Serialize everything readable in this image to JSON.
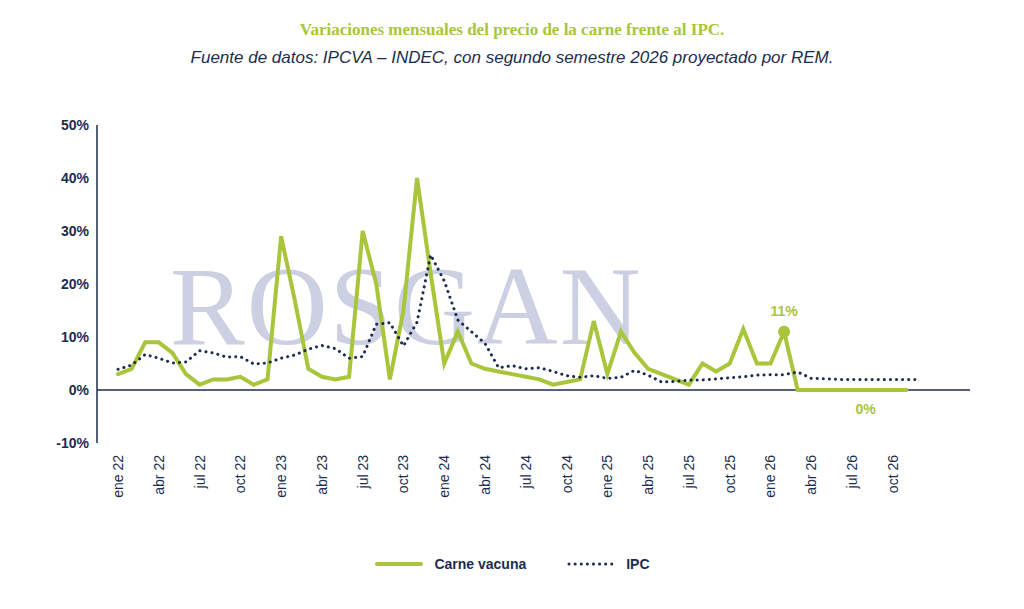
{
  "chart_data": {
    "type": "line",
    "title": "Variaciones mensuales del precio de la carne frente al IPC.",
    "subtitle": "Fuente de datos: IPCVA – INDEC, con segundo semestre 2026 proyectado por REM.",
    "watermark": "ROSGAN",
    "categories": [
      "ene 22",
      null,
      null,
      "abr 22",
      null,
      null,
      "jul 22",
      null,
      null,
      "oct 22",
      null,
      null,
      "ene 23",
      null,
      null,
      "abr 23",
      null,
      null,
      "jul 23",
      null,
      null,
      "oct 23",
      null,
      null,
      "ene 24",
      null,
      null,
      "abr 24",
      null,
      null,
      "jul 24",
      null,
      null,
      "oct 24",
      null,
      null,
      "ene 25",
      null,
      null,
      "abr 25",
      null,
      null,
      "jul 25",
      null,
      null,
      "oct 25",
      null,
      null,
      "ene 26",
      null,
      null,
      "abr 26",
      null,
      null,
      "jul 26",
      null,
      null,
      "oct 26",
      null,
      null
    ],
    "series": [
      {
        "name": "Carne vacuna",
        "color": "#a9c53b",
        "line_style": "solid",
        "values": [
          3,
          4,
          9,
          9,
          7,
          3,
          1,
          2,
          2,
          2.5,
          1,
          2,
          29,
          17,
          4,
          2.5,
          2,
          2.5,
          30,
          20,
          2,
          15,
          40,
          22,
          5,
          11,
          5,
          4,
          3.5,
          3,
          2.5,
          2,
          1,
          1.5,
          2,
          13,
          3,
          11,
          7,
          4,
          3,
          2,
          1,
          5,
          3.5,
          5,
          11.5,
          5,
          5,
          11,
          0,
          0,
          0,
          0,
          0,
          0,
          0,
          0,
          0,
          null
        ]
      },
      {
        "name": "IPC",
        "color": "#1c2d4f",
        "line_style": "dotted",
        "values": [
          3.9,
          4.7,
          6.7,
          6,
          5.1,
          5.3,
          7.4,
          7,
          6.2,
          6.3,
          4.9,
          5.1,
          6,
          6.6,
          7.7,
          8.4,
          7.8,
          6,
          6.3,
          12.4,
          12.7,
          8.3,
          12.8,
          25.5,
          20.6,
          13.2,
          11,
          8.8,
          4.2,
          4.6,
          4,
          4.2,
          3.5,
          2.7,
          2.4,
          2.7,
          2.2,
          2.4,
          3.7,
          2.8,
          1.5,
          1.6,
          1.9,
          1.9,
          2.1,
          2.3,
          2.5,
          2.8,
          2.9,
          2.9,
          3.4,
          2.2,
          2.1,
          2,
          2,
          2,
          2,
          2,
          2,
          2
        ]
      }
    ],
    "annotations": [
      {
        "text": "11%",
        "position": 49,
        "value": 11,
        "color": "#a9c53b",
        "marker": "circle"
      },
      {
        "text": "0%",
        "position": 55,
        "value": 0,
        "color": "#a9c53b",
        "marker": "none"
      }
    ],
    "ylim": [
      -10,
      50
    ],
    "yticks": [
      {
        "value": -10,
        "label": "-10%"
      },
      {
        "value": 0,
        "label": "0%"
      },
      {
        "value": 10,
        "label": "10%"
      },
      {
        "value": 20,
        "label": "20%"
      },
      {
        "value": 30,
        "label": "30%"
      },
      {
        "value": 40,
        "label": "40%"
      },
      {
        "value": 50,
        "label": "50%"
      }
    ],
    "grid": false,
    "legend": "bottom"
  }
}
